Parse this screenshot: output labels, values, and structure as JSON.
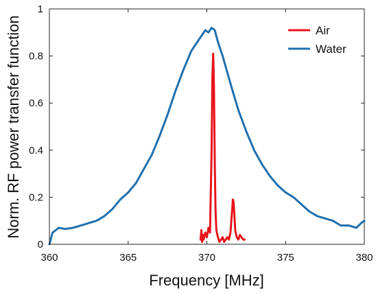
{
  "chart_data": {
    "type": "line",
    "xlabel": "Frequency [MHz]",
    "ylabel": "Norm. RF power transfer function",
    "xlim": [
      360,
      380
    ],
    "ylim": [
      0,
      1
    ],
    "xticks": [
      360,
      365,
      370,
      375,
      380
    ],
    "yticks": [
      0,
      0.2,
      0.4,
      0.6,
      0.8,
      1
    ],
    "xtick_labels": [
      "360",
      "365",
      "370",
      "375",
      "380"
    ],
    "ytick_labels": [
      "0",
      "0.2",
      "0.4",
      "0.6",
      "0.8",
      "1"
    ],
    "legend_position": "top-right",
    "grid": false,
    "series": [
      {
        "name": "Air",
        "color": "#e8141c",
        "x": [
          369.6,
          369.65,
          369.7,
          369.75,
          369.8,
          369.9,
          370.0,
          370.1,
          370.2,
          370.3,
          370.35,
          370.4,
          370.45,
          370.5,
          370.55,
          370.6,
          370.7,
          370.8,
          370.9,
          371.0,
          371.1,
          371.2,
          371.3,
          371.4,
          371.5,
          371.6,
          371.65,
          371.7,
          371.75,
          371.8,
          371.9,
          372.0,
          372.1,
          372.2,
          372.3,
          372.4
        ],
        "values": [
          0.02,
          0.06,
          0.01,
          0.04,
          0.02,
          0.05,
          0.03,
          0.07,
          0.05,
          0.4,
          0.7,
          0.81,
          0.68,
          0.35,
          0.15,
          0.06,
          0.03,
          0.01,
          0.02,
          0.03,
          0.01,
          0.02,
          0.03,
          0.02,
          0.05,
          0.14,
          0.19,
          0.18,
          0.12,
          0.06,
          0.03,
          0.02,
          0.04,
          0.03,
          0.02,
          0.02
        ]
      },
      {
        "name": "Water",
        "color": "#1f6fad",
        "x": [
          360.0,
          360.2,
          360.4,
          360.6,
          361.0,
          361.5,
          362.0,
          362.5,
          363.0,
          363.5,
          364.0,
          364.5,
          365.0,
          365.5,
          366.0,
          366.5,
          367.0,
          367.5,
          368.0,
          368.5,
          369.0,
          369.3,
          369.6,
          369.9,
          370.1,
          370.3,
          370.5,
          370.7,
          371.0,
          371.3,
          371.6,
          372.0,
          372.5,
          373.0,
          373.5,
          374.0,
          374.5,
          375.0,
          375.5,
          376.0,
          376.5,
          377.0,
          377.5,
          378.0,
          378.5,
          379.0,
          379.5,
          379.8,
          380.0
        ],
        "values": [
          0.0,
          0.05,
          0.06,
          0.07,
          0.065,
          0.07,
          0.08,
          0.09,
          0.1,
          0.12,
          0.15,
          0.19,
          0.22,
          0.26,
          0.32,
          0.38,
          0.46,
          0.55,
          0.65,
          0.74,
          0.82,
          0.85,
          0.88,
          0.91,
          0.9,
          0.92,
          0.91,
          0.86,
          0.8,
          0.73,
          0.66,
          0.57,
          0.48,
          0.4,
          0.34,
          0.29,
          0.25,
          0.22,
          0.2,
          0.17,
          0.14,
          0.12,
          0.11,
          0.1,
          0.08,
          0.08,
          0.07,
          0.09,
          0.1
        ]
      }
    ]
  }
}
